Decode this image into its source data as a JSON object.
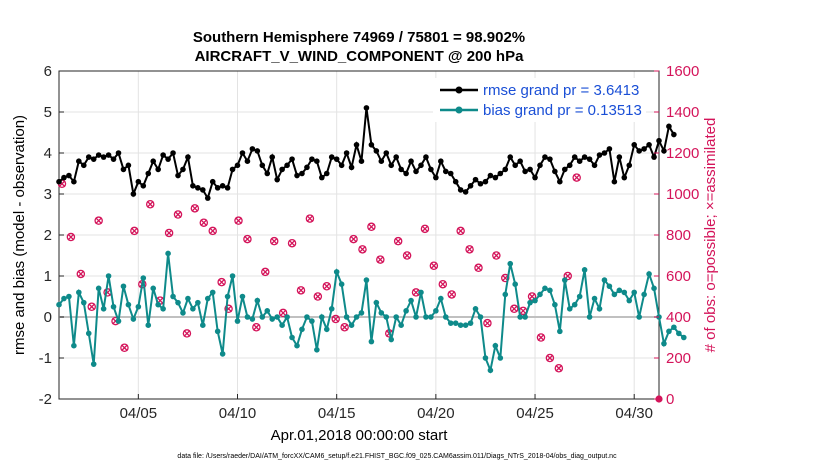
{
  "chart_data": {
    "type": "line",
    "title": "Southern Hemisphere 74969 / 75801 = 98.902%",
    "subtitle": "AIRCRAFT_V_WIND_COMPONENT @ 200 hPa",
    "xlabel": "Apr.01,2018 00:00:00 start",
    "ylabel": "rmse and bias (model - observation)",
    "y2label": "# of obs: o=possible; ×=assimilated",
    "footer": "data file: /Users/raeder/DAI/ATM_forcXX/CAM6_setup/f.e21.FHIST_BGC.f09_025.CAM6assim.011/Diags_NTrS_2018-04/obs_diag_output.nc",
    "xlim": [
      1,
      31.25
    ],
    "ylim": [
      -2,
      6
    ],
    "y2lim": [
      0,
      1600
    ],
    "x_ticks": [
      5,
      10,
      15,
      20,
      25,
      30
    ],
    "x_tick_labels": [
      "04/05",
      "04/10",
      "04/15",
      "04/20",
      "04/25",
      "04/30"
    ],
    "y_ticks": [
      -2,
      -1,
      0,
      1,
      2,
      3,
      4,
      5,
      6
    ],
    "y_tick_labels": [
      "-2",
      "-1",
      "0",
      "1",
      "2",
      "3",
      "4",
      "5",
      "6"
    ],
    "y2_ticks": [
      0,
      200,
      400,
      600,
      800,
      1000,
      1200,
      1400,
      1600
    ],
    "y2_tick_labels": [
      "0",
      "200",
      "400",
      "600",
      "800",
      "1000",
      "1200",
      "1400",
      "1600"
    ],
    "grid": true,
    "legend": {
      "location": "top-right",
      "entries": [
        "rmse grand pr = 3.6413",
        "bias grand pr = 0.13513"
      ]
    },
    "series": [
      {
        "name": "rmse grand pr = 3.6413",
        "color": "#000000",
        "axis": "left",
        "x_start": 1.0,
        "x_step": 0.25,
        "values": [
          3.3,
          3.4,
          3.45,
          3.3,
          3.8,
          3.7,
          3.9,
          3.85,
          3.95,
          3.9,
          3.95,
          3.85,
          4.0,
          3.6,
          3.7,
          3.0,
          3.3,
          3.2,
          3.5,
          3.8,
          3.6,
          3.95,
          3.85,
          4.0,
          3.45,
          3.6,
          3.9,
          3.2,
          3.15,
          3.1,
          2.9,
          3.3,
          3.15,
          3.2,
          3.15,
          3.6,
          3.7,
          4.0,
          3.8,
          4.1,
          4.05,
          3.7,
          3.5,
          3.9,
          3.35,
          3.6,
          3.7,
          3.85,
          3.45,
          3.5,
          3.65,
          3.85,
          3.8,
          3.4,
          3.5,
          3.9,
          3.85,
          3.7,
          4.0,
          3.65,
          4.2,
          3.8,
          5.1,
          4.2,
          4.05,
          3.8,
          4.0,
          3.7,
          3.9,
          3.6,
          3.5,
          3.8,
          3.55,
          3.7,
          3.9,
          3.6,
          3.4,
          3.8,
          3.55,
          3.5,
          3.3,
          3.1,
          3.05,
          3.2,
          3.35,
          3.25,
          3.3,
          3.45,
          3.4,
          3.5,
          3.6,
          3.9,
          3.7,
          3.8,
          3.55,
          3.6,
          3.4,
          3.7,
          3.9,
          3.85,
          3.55,
          3.3,
          3.6,
          3.7,
          3.9,
          3.8,
          3.9,
          3.85,
          3.7,
          3.95,
          4.0,
          4.1,
          3.3,
          3.9,
          3.4,
          3.7,
          4.2,
          4.05,
          4.1,
          4.2,
          3.9,
          4.3,
          4.05,
          4.65,
          4.45
        ],
        "marker": "filled-circle"
      },
      {
        "name": "bias grand pr = 0.13513",
        "color": "#0e8a8a",
        "axis": "left",
        "x_start": 1.0,
        "x_step": 0.25,
        "values": [
          0.3,
          0.45,
          0.5,
          -0.7,
          0.6,
          0.35,
          -0.4,
          -1.15,
          0.7,
          0.2,
          1.0,
          0.25,
          -0.1,
          0.75,
          0.3,
          -0.05,
          0.25,
          0.95,
          -0.2,
          0.7,
          0.3,
          0.2,
          1.55,
          0.5,
          0.35,
          0.1,
          0.45,
          0.2,
          0.35,
          -0.2,
          0.45,
          0.6,
          -0.35,
          -0.9,
          0.5,
          1.0,
          -0.1,
          0.5,
          0.0,
          -0.05,
          0.4,
          0.0,
          0.15,
          -0.05,
          0.0,
          -0.2,
          0.0,
          -0.5,
          -0.7,
          -0.3,
          0.0,
          -0.1,
          -0.8,
          0.0,
          -0.3,
          0.2,
          1.1,
          0.8,
          0.0,
          -0.2,
          0.0,
          0.1,
          0.9,
          -0.6,
          0.35,
          0.1,
          0.0,
          -0.55,
          0.0,
          -0.2,
          0.15,
          0.4,
          0.0,
          0.6,
          0.0,
          0.0,
          0.15,
          0.45,
          0.0,
          -0.15,
          -0.15,
          -0.2,
          -0.2,
          -0.15,
          0.2,
          0.0,
          -1.0,
          -1.3,
          -0.7,
          -1.0,
          0.55,
          1.3,
          0.8,
          0.0,
          0.0,
          0.35,
          0.4,
          0.55,
          0.7,
          0.65,
          0.3,
          -0.35,
          0.9,
          0.2,
          0.3,
          0.5,
          1.15,
          0.0,
          0.45,
          0.2,
          0.9,
          0.75,
          0.55,
          0.65,
          0.6,
          0.4,
          0.6,
          0.0,
          0.55,
          1.05,
          0.7,
          0.0,
          -0.65,
          -0.35,
          -0.25,
          -0.4,
          -0.5
        ],
        "marker": "filled-circle"
      },
      {
        "name": "obs possible",
        "color": "#d4145a",
        "axis": "right",
        "marker": "open-circle",
        "x_start": 1.0,
        "x_step": 0.5,
        "values": [
          1050,
          790,
          610,
          450,
          870,
          520,
          380,
          250,
          820,
          560,
          950,
          480,
          810,
          900,
          320,
          930,
          860,
          820,
          570,
          440,
          870,
          780,
          350,
          620,
          770,
          420,
          760,
          530,
          880,
          500,
          550,
          390,
          350,
          780,
          730,
          840,
          680,
          320,
          770,
          700,
          520,
          830,
          650,
          560,
          510,
          820,
          730,
          640,
          370,
          700,
          590,
          440,
          430,
          500,
          300,
          200,
          150,
          600,
          1080
        ],
        "x_values": [
          1.15,
          1.6,
          2.1,
          2.65,
          3.0,
          3.45,
          3.85,
          4.3,
          4.8,
          5.2,
          5.6,
          6.1,
          6.55,
          7.0,
          7.45,
          7.85,
          8.3,
          8.75,
          9.2,
          9.55,
          10.05,
          10.5,
          10.95,
          11.4,
          11.85,
          12.3,
          12.75,
          13.2,
          13.65,
          14.05,
          14.5,
          14.95,
          15.4,
          15.85,
          16.3,
          16.75,
          17.2,
          17.65,
          18.1,
          18.55,
          19.0,
          19.45,
          19.9,
          20.35,
          20.8,
          21.25,
          21.7,
          22.15,
          22.6,
          23.05,
          23.5,
          23.95,
          24.4,
          24.85,
          25.3,
          25.75,
          26.2,
          26.65,
          27.1
        ]
      }
    ]
  }
}
